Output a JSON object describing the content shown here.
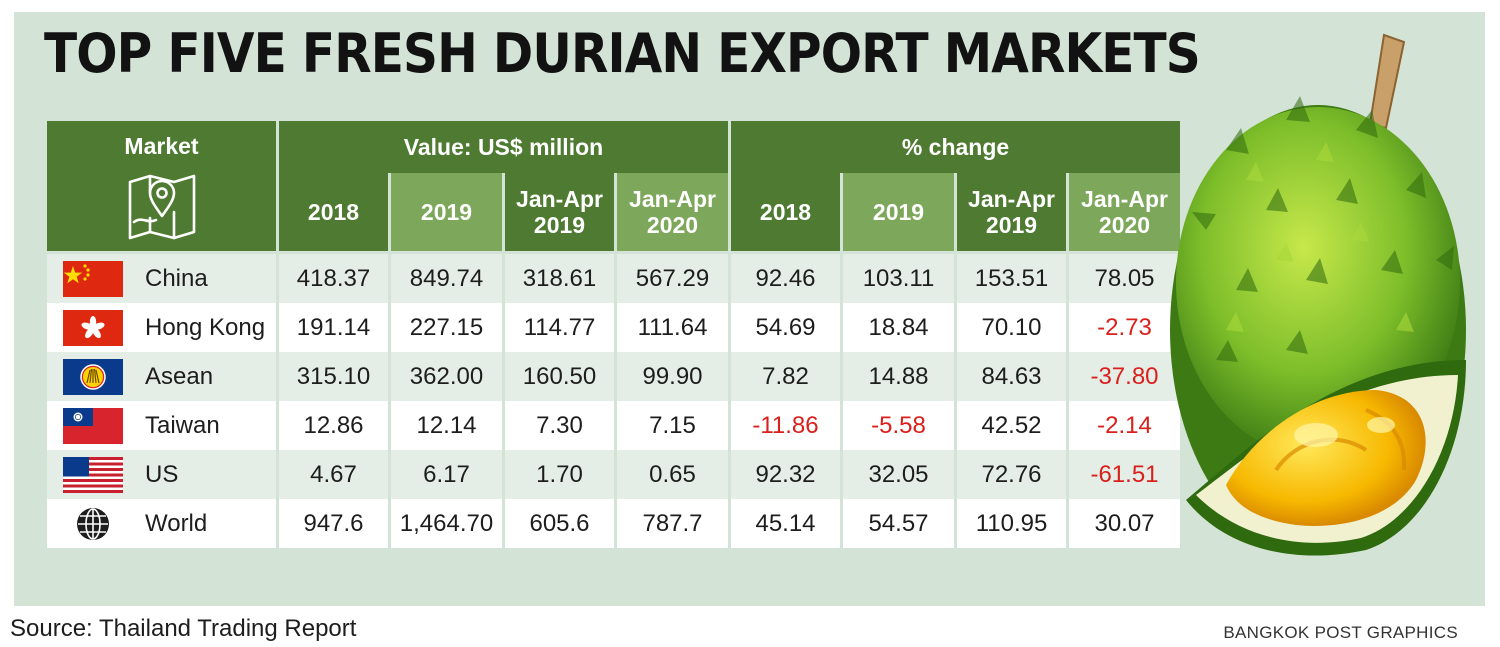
{
  "title": "TOP FIVE FRESH DURIAN EXPORT MARKETS",
  "chart_data": {
    "type": "table",
    "title": "TOP FIVE FRESH DURIAN EXPORT MARKETS",
    "market_header": "Market",
    "groups": [
      {
        "label": "Value: US$ million",
        "columns": [
          "2018",
          "2019",
          "Jan-Apr 2019",
          "Jan-Apr 2020"
        ]
      },
      {
        "label": "% change",
        "columns": [
          "2018",
          "2019",
          "Jan-Apr 2019",
          "Jan-Apr 2020"
        ]
      }
    ],
    "rows": [
      {
        "market": "China",
        "flag": "china-flag",
        "values": [
          "418.37",
          "849.74",
          "318.61",
          "567.29"
        ],
        "changes": [
          "92.46",
          "103.11",
          "153.51",
          "78.05"
        ]
      },
      {
        "market": "Hong Kong",
        "flag": "hong-kong-flag",
        "values": [
          "191.14",
          "227.15",
          "114.77",
          "111.64"
        ],
        "changes": [
          "54.69",
          "18.84",
          "70.10",
          "-2.73"
        ]
      },
      {
        "market": "Asean",
        "flag": "asean-flag",
        "values": [
          "315.10",
          "362.00",
          "160.50",
          "99.90"
        ],
        "changes": [
          "7.82",
          "14.88",
          "84.63",
          "-37.80"
        ]
      },
      {
        "market": "Taiwan",
        "flag": "taiwan-flag",
        "values": [
          "12.86",
          "12.14",
          "7.30",
          "7.15"
        ],
        "changes": [
          "-11.86",
          "-5.58",
          "42.52",
          "-2.14"
        ]
      },
      {
        "market": "US",
        "flag": "us-flag",
        "values": [
          "4.67",
          "6.17",
          "1.70",
          "0.65"
        ],
        "changes": [
          "92.32",
          "32.05",
          "72.76",
          "-61.51"
        ]
      },
      {
        "market": "World",
        "flag": "globe-icon",
        "values": [
          "947.6",
          "1,464.70",
          "605.6",
          "787.7"
        ],
        "changes": [
          "45.14",
          "54.57",
          "110.95",
          "30.07"
        ]
      }
    ]
  },
  "source": "Source: Thailand Trading Report",
  "credit": "BANGKOK POST GRAPHICS",
  "colors": {
    "header_dark": "#4e7a31",
    "header_light": "#7da75a",
    "panel": "#d3e4d6",
    "negative": "#d9201c"
  },
  "icons": [
    "map-pin-icon",
    "durian-illustration"
  ]
}
